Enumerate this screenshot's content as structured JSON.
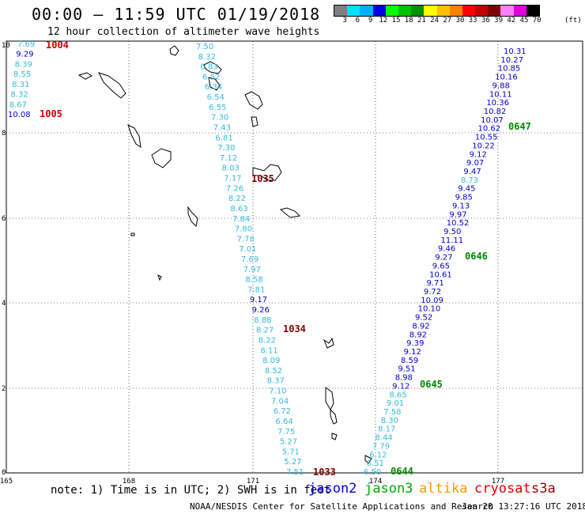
{
  "header": {
    "title": "00:00 – 11:59 UTC 01/19/2018",
    "subtitle": "12 hour collection of altimeter wave heights"
  },
  "colorbar": {
    "colors": [
      "#808080",
      "#00e0ff",
      "#00b0ff",
      "#0000e0",
      "#00ff00",
      "#00c000",
      "#009000",
      "#ffff00",
      "#ffc000",
      "#ff8000",
      "#ff0000",
      "#c00000",
      "#800000",
      "#ff80ff",
      "#e000e0",
      "#000000"
    ],
    "labels": [
      "3",
      "6",
      "9",
      "12",
      "15",
      "18",
      "21",
      "24",
      "27",
      "30",
      "33",
      "36",
      "39",
      "42",
      "45",
      "70"
    ],
    "unit": "(ft)"
  },
  "axes": {
    "x_ticks": [
      "165",
      "168",
      "171",
      "174",
      "177"
    ],
    "y_ticks": [
      "0",
      "2",
      "4",
      "6",
      "8",
      "10"
    ]
  },
  "tracks": {
    "jason3_track": {
      "color": "#33bbdd",
      "values": [
        "7.50",
        "8.32",
        "6.83",
        "6.52",
        "6.34",
        "6.54",
        "6.55",
        "7.30",
        "7.43",
        "6.81",
        "7.30",
        "7.12",
        "8.03",
        "7.17",
        "7.26",
        "8.22",
        "8.63",
        "7.84",
        "7.80",
        "7.78",
        "7.01",
        "7.69",
        "7.97",
        "8.58",
        "7.81",
        "9.17",
        "9.26",
        "8.88",
        "8.27",
        "8.22",
        "8.11",
        "8.09",
        "8.52",
        "8.37",
        "7.10",
        "7.04",
        "6.72",
        "6.64",
        "7.75",
        "5.27",
        "5.71",
        "5.27",
        "7.51"
      ]
    },
    "left_track": {
      "values": [
        "7.69",
        "9.29",
        "8.39",
        "8.55",
        "8.31",
        "8.32",
        "8.67",
        "10.08"
      ]
    },
    "jason2_track": {
      "values": [
        "10.31",
        "10.27",
        "10.85",
        "10.16",
        "9.88",
        "10.11",
        "10.36",
        "10.82",
        "10.07",
        "10.62",
        "10.55",
        "10.22",
        "9.12",
        "9.07",
        "9.47",
        "8.73",
        "9.45",
        "9.85",
        "9.13",
        "9.97",
        "10.52",
        "9.50",
        "11.11",
        "9.46",
        "9.27",
        "9.65",
        "10.61",
        "9.71",
        "9.72",
        "10.09",
        "10.10",
        "9.52",
        "8.92",
        "8.92",
        "9.39",
        "9.12",
        "8.59",
        "9.51",
        "8.98",
        "9.12",
        "8.65",
        "9.01",
        "7.58",
        "8.30",
        "8.17",
        "8.44",
        "7.79",
        "6.12",
        "6.51",
        "6.50"
      ]
    }
  },
  "time_labels": [
    {
      "text": "1004",
      "color": "#cc0000"
    },
    {
      "text": "1005",
      "color": "#cc0000"
    },
    {
      "text": "1035",
      "color": "#880000"
    },
    {
      "text": "1034",
      "color": "#880000"
    },
    {
      "text": "1033",
      "color": "#880000"
    },
    {
      "text": "0647",
      "color": "#008800"
    },
    {
      "text": "0646",
      "color": "#008800"
    },
    {
      "text": "0645",
      "color": "#008800"
    },
    {
      "text": "0644",
      "color": "#008800"
    }
  ],
  "footer": {
    "note": "note: 1) Time is in UTC; 2) SWH is in feet",
    "satellites": [
      {
        "name": "jason2",
        "color": "#0000dd"
      },
      {
        "name": "jason3",
        "color": "#00aa00"
      },
      {
        "name": "altika",
        "color": "#ff9900"
      },
      {
        "name": "cryosat",
        "color": "#dd0000"
      },
      {
        "name": "s3a",
        "color": "#990000"
      }
    ],
    "credit": "NOAA/NESDIS Center for Satellite Applications and Research",
    "timestamp": "Jan 20 13:27:16 UTC 2018"
  }
}
